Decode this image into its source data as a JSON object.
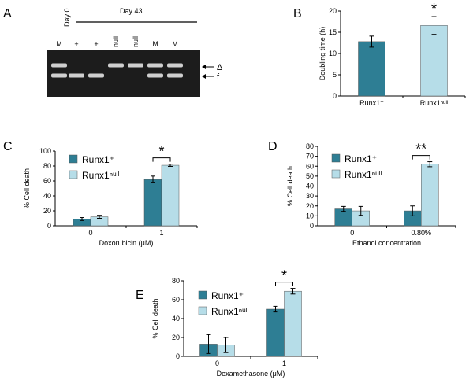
{
  "colors": {
    "dark": "#2e7e94",
    "light": "#b6dde8",
    "gel_bg": "#1c1c1c",
    "band": "#cfcfcf"
  },
  "gel": {
    "panel_label": "A",
    "day0_label": "Day 0",
    "day43_label": "Day 43",
    "lane_labels": [
      "M",
      "+",
      "+",
      "null",
      "null",
      "M",
      "M"
    ],
    "band_labels": [
      "Δ",
      "f"
    ],
    "band_pattern": [
      [
        "delta",
        "f"
      ],
      [
        "f"
      ],
      [
        "f"
      ],
      [
        "delta"
      ],
      [
        "delta"
      ],
      [
        "delta",
        "f"
      ],
      [
        "delta",
        "f"
      ]
    ]
  },
  "chart_data": [
    {
      "panel": "B",
      "type": "bar",
      "categories": [
        "Runx1⁺",
        "Runx1ⁿᵘˡˡ"
      ],
      "values": [
        12.8,
        16.6
      ],
      "errors": [
        1.3,
        2.1
      ],
      "bar_colors": [
        "dark",
        "light"
      ],
      "ylabel": "Doubling time (h)",
      "xlabel": "",
      "ylim": [
        0,
        20
      ],
      "yticks": [
        "0",
        "5",
        "10",
        "15",
        "20"
      ],
      "significance": "*",
      "grid": false
    },
    {
      "panel": "C",
      "type": "bar",
      "categories": [
        "0",
        "1"
      ],
      "series": [
        {
          "name": "Runx1⁺",
          "values": [
            9,
            62
          ],
          "errors": [
            2,
            4.5
          ]
        },
        {
          "name": "Runx1ⁿᵘˡˡ",
          "values": [
            12,
            81
          ],
          "errors": [
            2,
            1.5
          ]
        }
      ],
      "xlabel": "Doxorubicin (μM)",
      "ylabel": "% Cell death",
      "ylim": [
        0,
        100
      ],
      "yticks": [
        "0",
        "20",
        "40",
        "60",
        "80",
        "100"
      ],
      "significance": "*",
      "legend": "top-left",
      "grid": false
    },
    {
      "panel": "D",
      "type": "bar",
      "categories": [
        "0",
        "0.80%"
      ],
      "series": [
        {
          "name": "Runx1⁺",
          "values": [
            17,
            15
          ],
          "errors": [
            2.5,
            5
          ]
        },
        {
          "name": "Runx1ⁿᵘˡˡ",
          "values": [
            15,
            62
          ],
          "errors": [
            4.5,
            2.5
          ]
        }
      ],
      "xlabel": "Ethanol concentration",
      "ylabel": "% Cell death",
      "ylim": [
        0,
        80
      ],
      "yticks": [
        "0",
        "10",
        "20",
        "30",
        "40",
        "50",
        "60",
        "70",
        "80"
      ],
      "significance": "**",
      "legend": "top-left",
      "grid": false
    },
    {
      "panel": "E",
      "type": "bar",
      "categories": [
        "0",
        "1"
      ],
      "series": [
        {
          "name": "Runx1⁺",
          "values": [
            13,
            50
          ],
          "errors": [
            10,
            3
          ]
        },
        {
          "name": "Runx1ⁿᵘˡˡ",
          "values": [
            12,
            69
          ],
          "errors": [
            8,
            3
          ]
        }
      ],
      "xlabel": "Dexamethasone (μM)",
      "ylabel": "% Cell death",
      "ylim": [
        0,
        80
      ],
      "yticks": [
        "0",
        "20",
        "40",
        "60",
        "80"
      ],
      "significance": "*",
      "legend": "top-left",
      "grid": false
    }
  ]
}
